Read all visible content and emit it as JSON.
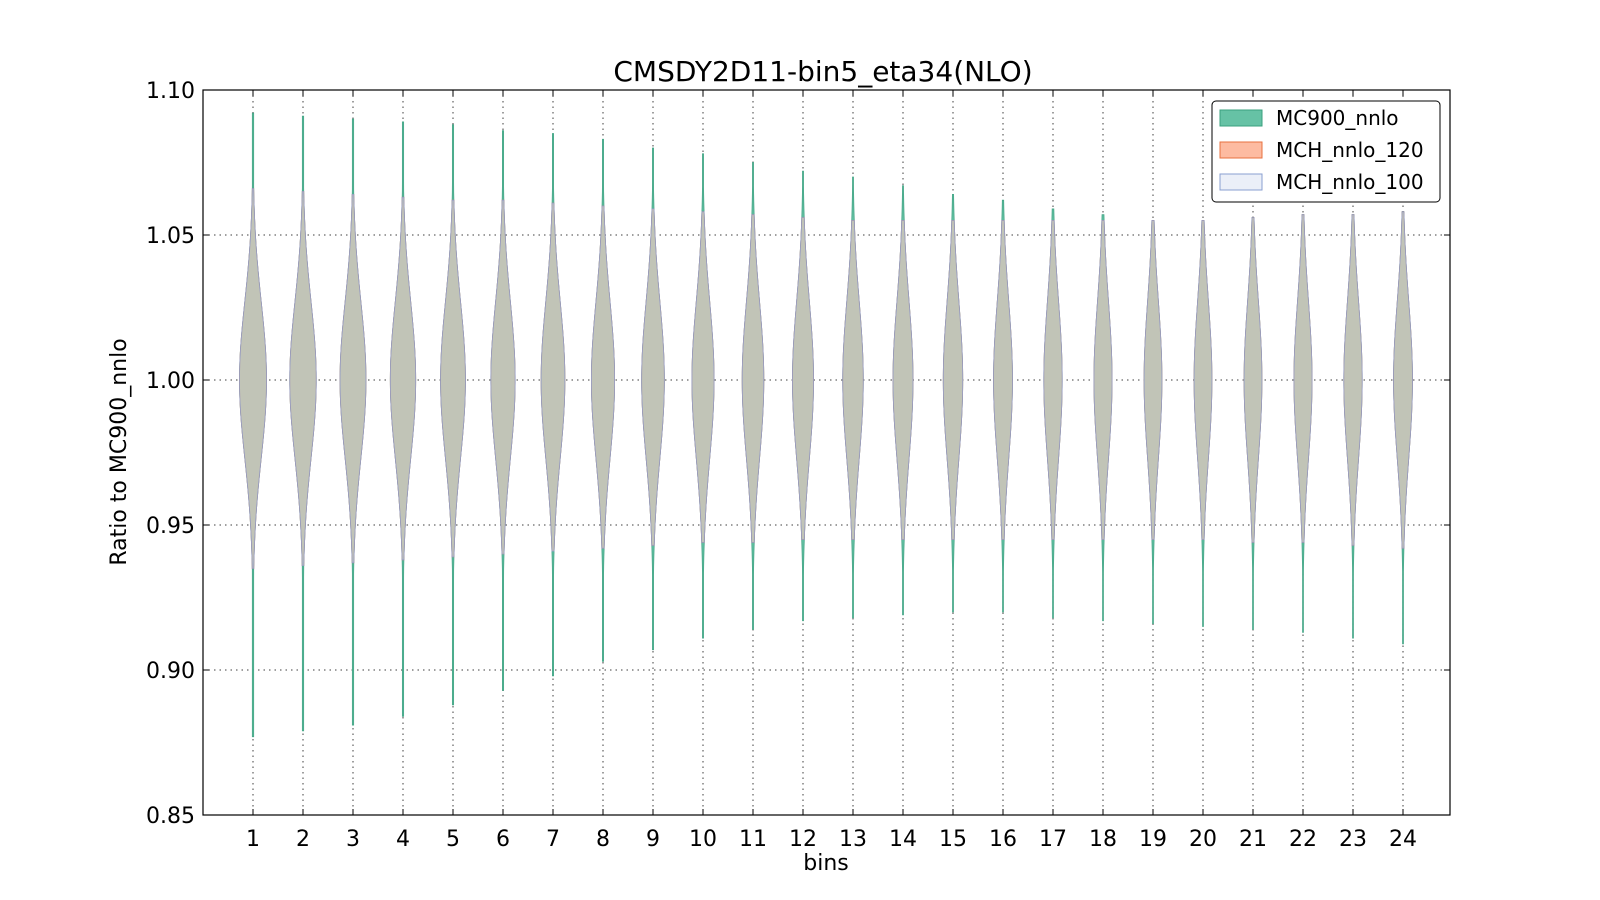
{
  "chart_data": {
    "type": "violin",
    "title": "CMSDY2D11-bin5_eta34(NLO)",
    "xlabel": "bins",
    "ylabel": "Ratio to MC900_nnlo",
    "ylim": [
      0.85,
      1.1
    ],
    "yticks": [
      "0.85",
      "0.90",
      "0.95",
      "1.00",
      "1.05",
      "1.10"
    ],
    "ytick_values": [
      0.85,
      0.9,
      0.95,
      1.0,
      1.05,
      1.1
    ],
    "categories": [
      "1",
      "2",
      "3",
      "4",
      "5",
      "6",
      "7",
      "8",
      "9",
      "10",
      "11",
      "12",
      "13",
      "14",
      "15",
      "16",
      "17",
      "18",
      "19",
      "20",
      "21",
      "22",
      "23",
      "24"
    ],
    "grid": true,
    "legend_position": "top-right",
    "series": [
      {
        "name": "MC900_nnlo",
        "color": "#66c2a5",
        "edge": "#3aa07e",
        "min": [
          0.877,
          0.879,
          0.881,
          0.884,
          0.888,
          0.893,
          0.898,
          0.903,
          0.907,
          0.911,
          0.914,
          0.917,
          0.918,
          0.919,
          0.92,
          0.92,
          0.918,
          0.917,
          0.916,
          0.915,
          0.914,
          0.913,
          0.911,
          0.909
        ],
        "max": [
          1.092,
          1.091,
          1.09,
          1.089,
          1.088,
          1.086,
          1.085,
          1.083,
          1.08,
          1.078,
          1.075,
          1.072,
          1.07,
          1.067,
          1.064,
          1.062,
          1.059,
          1.057,
          1.055,
          1.055,
          1.056,
          1.057,
          1.057,
          1.058
        ],
        "width": [
          1.0,
          0.98,
          0.96,
          0.94,
          0.92,
          0.9,
          0.88,
          0.86,
          0.84,
          0.82,
          0.8,
          0.78,
          0.76,
          0.74,
          0.72,
          0.7,
          0.68,
          0.67,
          0.66,
          0.66,
          0.66,
          0.67,
          0.68,
          0.7
        ]
      },
      {
        "name": "MCH_nnlo_120",
        "color": "#fc8d62",
        "edge": "#e8703f",
        "min": [
          0.935,
          0.936,
          0.937,
          0.938,
          0.939,
          0.94,
          0.941,
          0.942,
          0.943,
          0.944,
          0.944,
          0.945,
          0.945,
          0.945,
          0.945,
          0.945,
          0.945,
          0.945,
          0.945,
          0.945,
          0.944,
          0.944,
          0.943,
          0.942
        ],
        "max": [
          1.066,
          1.065,
          1.064,
          1.063,
          1.062,
          1.062,
          1.061,
          1.06,
          1.059,
          1.058,
          1.057,
          1.056,
          1.055,
          1.055,
          1.055,
          1.055,
          1.055,
          1.055,
          1.055,
          1.055,
          1.056,
          1.057,
          1.057,
          1.058
        ],
        "width": [
          1.0,
          0.98,
          0.96,
          0.94,
          0.92,
          0.9,
          0.88,
          0.86,
          0.84,
          0.82,
          0.8,
          0.78,
          0.76,
          0.74,
          0.72,
          0.7,
          0.68,
          0.67,
          0.66,
          0.66,
          0.66,
          0.67,
          0.68,
          0.7
        ]
      },
      {
        "name": "MCH_nnlo_100",
        "color": "#dde4f4",
        "edge": "#8a9fd0",
        "min": [
          0.935,
          0.936,
          0.937,
          0.938,
          0.939,
          0.94,
          0.941,
          0.942,
          0.943,
          0.944,
          0.944,
          0.945,
          0.945,
          0.945,
          0.945,
          0.945,
          0.945,
          0.945,
          0.945,
          0.945,
          0.944,
          0.944,
          0.943,
          0.942
        ],
        "max": [
          1.066,
          1.065,
          1.064,
          1.063,
          1.062,
          1.062,
          1.061,
          1.06,
          1.059,
          1.058,
          1.057,
          1.056,
          1.055,
          1.055,
          1.055,
          1.055,
          1.055,
          1.055,
          1.055,
          1.055,
          1.056,
          1.057,
          1.057,
          1.058
        ],
        "width": [
          1.0,
          0.98,
          0.96,
          0.94,
          0.92,
          0.9,
          0.88,
          0.86,
          0.84,
          0.82,
          0.8,
          0.78,
          0.76,
          0.74,
          0.72,
          0.7,
          0.68,
          0.67,
          0.66,
          0.66,
          0.66,
          0.67,
          0.68,
          0.7
        ]
      }
    ]
  }
}
